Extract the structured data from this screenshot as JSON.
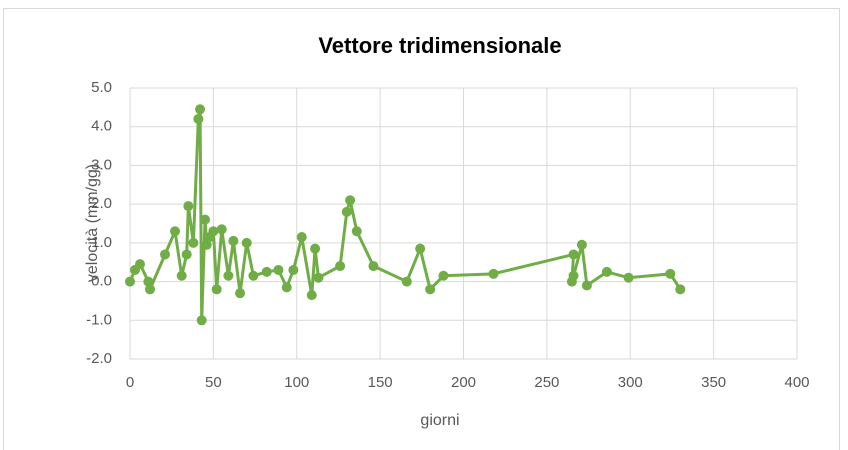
{
  "chart_data": {
    "type": "line",
    "title": "Vettore tridimensionale",
    "x_label": "giorni",
    "y_label": "velocità (mm/gg)",
    "series": [
      {
        "name": "Vettore tridimensionale",
        "color": "#70ad47",
        "x": [
          0,
          3,
          6,
          11,
          12,
          21,
          27,
          31,
          34,
          35,
          38,
          41,
          42,
          43,
          45,
          46,
          48,
          50,
          52,
          55,
          59,
          62,
          66,
          70,
          74,
          82,
          89,
          94,
          98,
          103,
          109,
          111,
          113,
          126,
          130,
          132,
          136,
          146,
          166,
          174,
          180,
          188,
          218,
          266,
          265,
          266,
          271,
          274,
          286,
          299,
          324,
          330
        ],
        "values": [
          0.0,
          0.3,
          0.45,
          0.0,
          -0.2,
          0.7,
          1.3,
          0.15,
          0.7,
          1.95,
          1.0,
          4.2,
          4.45,
          -1.0,
          1.6,
          0.95,
          1.15,
          1.3,
          -0.2,
          1.35,
          0.15,
          1.05,
          -0.3,
          1.0,
          0.15,
          0.25,
          0.3,
          -0.15,
          0.3,
          1.15,
          -0.35,
          0.85,
          0.1,
          0.4,
          1.8,
          2.1,
          1.3,
          0.4,
          0.0,
          0.85,
          -0.2,
          0.15,
          0.2,
          0.7,
          0.0,
          0.15,
          0.95,
          -0.1,
          0.25,
          0.1,
          0.2,
          -0.2
        ]
      }
    ],
    "xlim": [
      0,
      400
    ],
    "xticks": [
      0,
      50,
      100,
      150,
      200,
      250,
      300,
      350,
      400
    ],
    "ylim": [
      -2,
      5
    ],
    "yticks": [
      {
        "value": -2,
        "label": "-2.0"
      },
      {
        "value": -1,
        "label": "-1.0"
      },
      {
        "value": 0,
        "label": "0.0"
      },
      {
        "value": 1,
        "label": "1.0"
      },
      {
        "value": 2,
        "label": "2.0"
      },
      {
        "value": 3,
        "label": "3.0"
      },
      {
        "value": 4,
        "label": "4.0"
      },
      {
        "value": 5,
        "label": "5.0"
      }
    ],
    "grid": true
  }
}
